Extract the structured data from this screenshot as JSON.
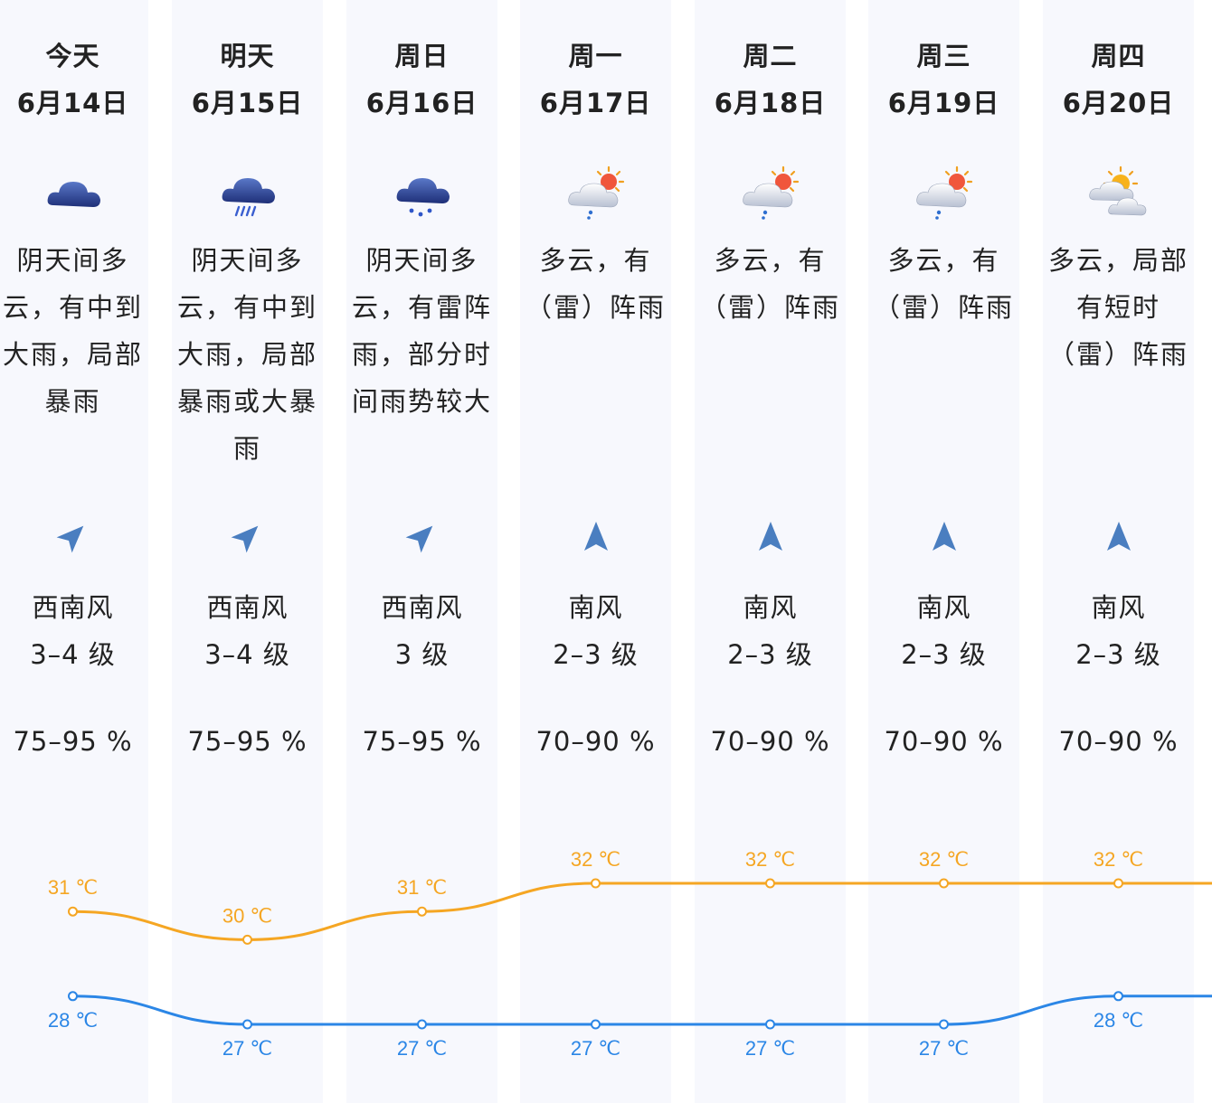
{
  "days": [
    {
      "name": "今天",
      "date": "6月14日",
      "icon": "cloudy-icon",
      "desc": "阴天间多云，有中到大雨，局部暴雨",
      "wind_dir_icon": "arrow-southwest-icon",
      "wind_dir": "西南风",
      "wind_level": "3–4 级",
      "humidity": "75–95 %",
      "high": 31,
      "high_label": "31 ℃",
      "low": 28,
      "low_label": "28 ℃"
    },
    {
      "name": "明天",
      "date": "6月15日",
      "icon": "heavy-rain-icon",
      "desc": "阴天间多云，有中到大雨，局部暴雨或大暴雨",
      "wind_dir_icon": "arrow-southwest-icon",
      "wind_dir": "西南风",
      "wind_level": "3–4 级",
      "humidity": "75–95 %",
      "high": 30,
      "high_label": "30 ℃",
      "low": 27,
      "low_label": "27 ℃"
    },
    {
      "name": "周日",
      "date": "6月16日",
      "icon": "thunder-shower-icon",
      "desc": "阴天间多云，有雷阵雨，部分时间雨势较大",
      "wind_dir_icon": "arrow-southwest-icon",
      "wind_dir": "西南风",
      "wind_level": "3 级",
      "humidity": "75–95 %",
      "high": 31,
      "high_label": "31 ℃",
      "low": 27,
      "low_label": "27 ℃"
    },
    {
      "name": "周一",
      "date": "6月17日",
      "icon": "partly-cloudy-shower-icon",
      "desc": "多云，有（雷）阵雨",
      "wind_dir_icon": "arrow-south-icon",
      "wind_dir": "南风",
      "wind_level": "2–3 级",
      "humidity": "70–90 %",
      "high": 32,
      "high_label": "32 ℃",
      "low": 27,
      "low_label": "27 ℃"
    },
    {
      "name": "周二",
      "date": "6月18日",
      "icon": "partly-cloudy-shower-icon",
      "desc": "多云，有（雷）阵雨",
      "wind_dir_icon": "arrow-south-icon",
      "wind_dir": "南风",
      "wind_level": "2–3 级",
      "humidity": "70–90 %",
      "high": 32,
      "high_label": "32 ℃",
      "low": 27,
      "low_label": "27 ℃"
    },
    {
      "name": "周三",
      "date": "6月19日",
      "icon": "partly-cloudy-shower-icon",
      "desc": "多云，有（雷）阵雨",
      "wind_dir_icon": "arrow-south-icon",
      "wind_dir": "南风",
      "wind_level": "2–3 级",
      "humidity": "70–90 %",
      "high": 32,
      "high_label": "32 ℃",
      "low": 27,
      "low_label": "27 ℃"
    },
    {
      "name": "周四",
      "date": "6月20日",
      "icon": "sun-cloud-icon",
      "desc": "多云，局部有短时（雷）阵雨",
      "wind_dir_icon": "arrow-south-icon",
      "wind_dir": "南风",
      "wind_level": "2–3 级",
      "humidity": "70–90 %",
      "high": 32,
      "high_label": "32 ℃",
      "low": 28,
      "low_label": "28 ℃"
    }
  ],
  "colors": {
    "high": "#f5a623",
    "low": "#2b86e6",
    "column_bg": "#f7f8fd"
  }
}
